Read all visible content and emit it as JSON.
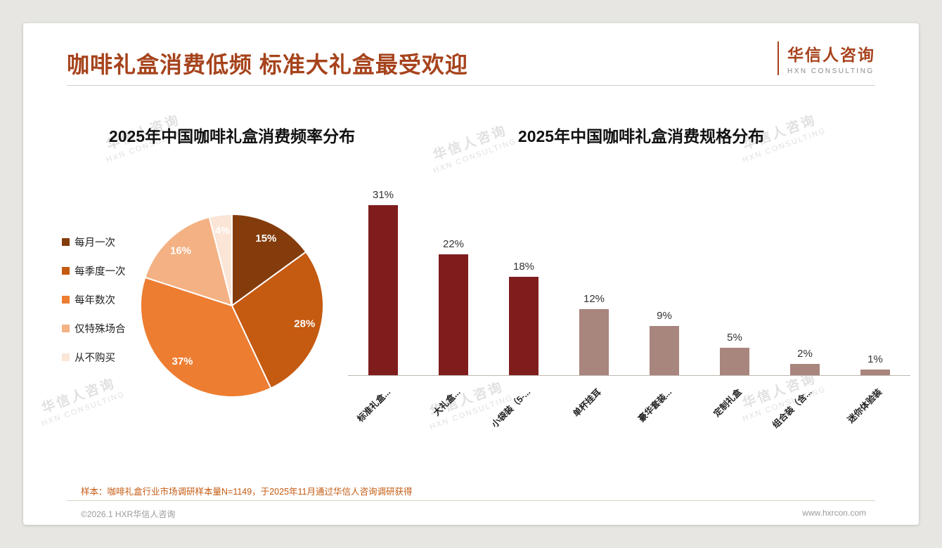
{
  "page": {
    "title": "咖啡礼盒消费低频 标准大礼盒最受欢迎",
    "logo": {
      "name": "华信人咨询",
      "subtitle": "HXN CONSULTING"
    },
    "watermark": {
      "line1": "华信人咨询",
      "line2": "HXN CONSULTING"
    },
    "footer": {
      "note": "样本：咖啡礼盒行业市场调研样本量N=1149，于2025年11月通过华信人咨询调研获得",
      "copyright": "©2026.1 HXR华信人咨询",
      "website": "www.hxrcon.com"
    }
  },
  "colors": {
    "accent": "#a6431c",
    "bar_primary": "#7f1d1d",
    "bar_secondary": "#a8857d",
    "footer_note": "#c55a11"
  },
  "chart_data": [
    {
      "type": "pie",
      "title": "2025年中国咖啡礼盒消费频率分布",
      "labels": [
        "每月一次",
        "每季度一次",
        "每年数次",
        "仅特殊场合",
        "从不购买"
      ],
      "values": [
        15,
        28,
        37,
        16,
        4
      ],
      "data_labels": [
        "15%",
        "28%",
        "37%",
        "16%",
        "4%"
      ],
      "colors": [
        "#843c0c",
        "#c55a11",
        "#ed7d31",
        "#f4b183",
        "#fbe5d6"
      ],
      "legend_position": "left",
      "start_angle_deg": 0,
      "direction": "clockwise"
    },
    {
      "type": "bar",
      "title": "2025年中国咖啡礼盒消费规格分布",
      "categories": [
        "标准礼盒...",
        "大礼盒...",
        "小袋装（5-...",
        "单杯挂耳",
        "豪华套装...",
        "定制礼盒",
        "组合装（含...",
        "迷你体验装"
      ],
      "values": [
        31,
        22,
        18,
        12,
        9,
        5,
        2,
        1
      ],
      "data_labels": [
        "31%",
        "22%",
        "18%",
        "12%",
        "9%",
        "5%",
        "2%",
        "1%"
      ],
      "bar_colors": [
        "#7f1d1d",
        "#7f1d1d",
        "#7f1d1d",
        "#a8857d",
        "#a8857d",
        "#a8857d",
        "#a8857d",
        "#a8857d"
      ],
      "xlabel": "",
      "ylabel": "",
      "ylim": [
        0,
        35
      ],
      "grid": false,
      "legend": false
    }
  ]
}
